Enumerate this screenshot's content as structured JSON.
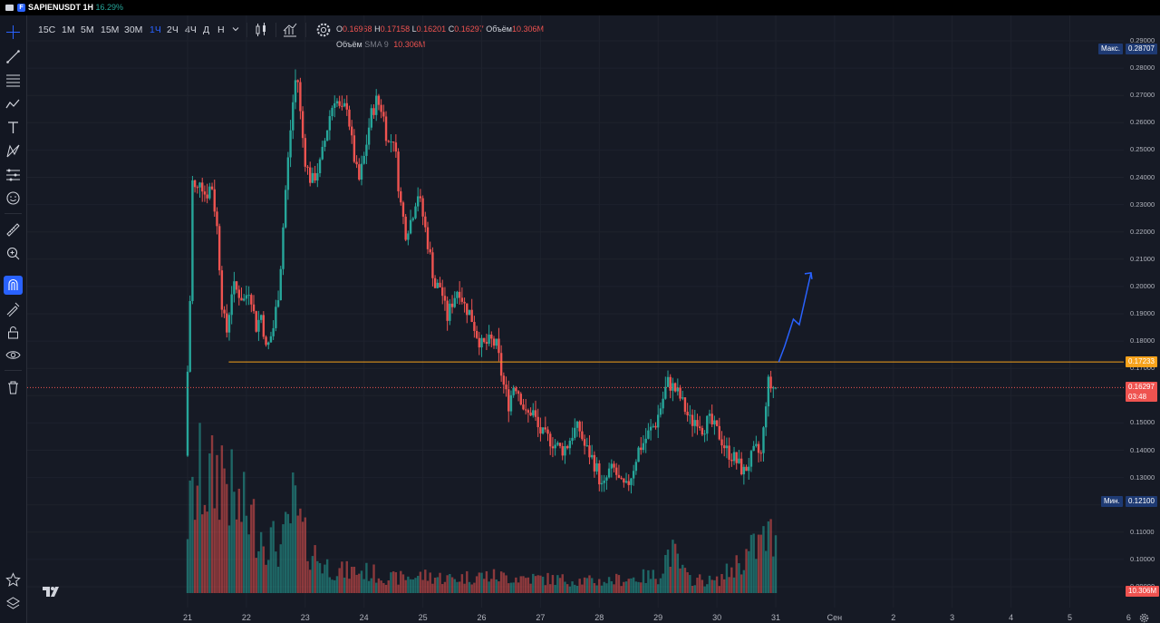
{
  "window": {
    "symbol": "SAPIENUSDT 1H",
    "change": "16.29%",
    "logo_letter": "F"
  },
  "toolbar": {
    "timeframes": [
      "15С",
      "1М",
      "5М",
      "15М",
      "30М",
      "1Ч",
      "2Ч",
      "4Ч",
      "Д",
      "Н"
    ],
    "selected_timeframe": "1Ч",
    "icons": [
      "dropdown-chevron-icon",
      "candles-icon",
      "indicators-icon",
      "settings-icon"
    ]
  },
  "left_tools": [
    "crosshair-icon",
    "trendline-icon",
    "fib-icon",
    "pattern-icon",
    "text-icon",
    "xabcd-icon",
    "forecast-icon",
    "emoji-icon",
    "ruler-icon",
    "zoom-icon",
    "magnet-icon",
    "lock-draw-icon",
    "lock-icon",
    "eye-icon",
    "trash-icon",
    "star-icon",
    "layers-icon"
  ],
  "legend": {
    "open_key": "О",
    "open": "0.16968",
    "high_key": "Н",
    "high": "0.17158",
    "low_key": "L",
    "low": "0.16201",
    "close_key": "С",
    "close": "0.16297",
    "vol_key": "Объём",
    "vol": "10.306M",
    "sma_name": "Объём",
    "sma_label": "SMA 9",
    "sma_value": "10.306M"
  },
  "price_axis": {
    "labels": [
      "0.29000",
      "0.28000",
      "0.27000",
      "0.26000",
      "0.25000",
      "0.24000",
      "0.23000",
      "0.22000",
      "0.21000",
      "0.20000",
      "0.19000",
      "0.18000",
      "0.17000",
      "0.16000",
      "0.15000",
      "0.14000",
      "0.13000",
      "0.12000",
      "0.11000",
      "0.10000",
      "0.09000"
    ],
    "max_label": "Макс.",
    "max_value": "0.28707",
    "min_label": "Мин.",
    "min_value": "0.12100",
    "level_value": "0.17233",
    "last_price": "0.16297",
    "countdown": "03:48",
    "volume_tag": "10.306M"
  },
  "time_axis": [
    "21",
    "22",
    "23",
    "24",
    "25",
    "26",
    "27",
    "28",
    "29",
    "30",
    "31",
    "Сен",
    "2",
    "3",
    "4",
    "5",
    "6"
  ],
  "colors": {
    "up": "#26a69a",
    "down": "#ef5350",
    "level": "#f7a21b",
    "arrow": "#2962ff",
    "background": "#161a25"
  },
  "chart_data": {
    "type": "candlestick",
    "ylim": [
      0.09,
      0.29
    ],
    "resistance_level": 0.17233,
    "last_close": 0.16297,
    "price_path": [
      [
        21.0,
        0.138
      ],
      [
        21.05,
        0.175
      ],
      [
        21.1,
        0.205
      ],
      [
        21.13,
        0.245
      ],
      [
        21.18,
        0.232
      ],
      [
        21.25,
        0.24
      ],
      [
        21.35,
        0.233
      ],
      [
        21.45,
        0.238
      ],
      [
        21.55,
        0.22
      ],
      [
        21.62,
        0.195
      ],
      [
        21.7,
        0.182
      ],
      [
        21.8,
        0.2
      ],
      [
        21.9,
        0.198
      ],
      [
        22.0,
        0.195
      ],
      [
        22.1,
        0.2
      ],
      [
        22.2,
        0.185
      ],
      [
        22.3,
        0.19
      ],
      [
        22.38,
        0.176
      ],
      [
        22.5,
        0.185
      ],
      [
        22.6,
        0.2
      ],
      [
        22.7,
        0.233
      ],
      [
        22.82,
        0.265
      ],
      [
        22.9,
        0.28
      ],
      [
        22.97,
        0.26
      ],
      [
        23.05,
        0.245
      ],
      [
        23.15,
        0.238
      ],
      [
        23.3,
        0.245
      ],
      [
        23.45,
        0.262
      ],
      [
        23.55,
        0.27
      ],
      [
        23.65,
        0.263
      ],
      [
        23.75,
        0.267
      ],
      [
        23.85,
        0.25
      ],
      [
        23.95,
        0.238
      ],
      [
        24.05,
        0.248
      ],
      [
        24.15,
        0.262
      ],
      [
        24.25,
        0.268
      ],
      [
        24.35,
        0.265
      ],
      [
        24.45,
        0.252
      ],
      [
        24.55,
        0.255
      ],
      [
        24.65,
        0.232
      ],
      [
        24.75,
        0.22
      ],
      [
        24.85,
        0.225
      ],
      [
        24.95,
        0.235
      ],
      [
        25.05,
        0.225
      ],
      [
        25.15,
        0.213
      ],
      [
        25.25,
        0.2
      ],
      [
        25.35,
        0.2
      ],
      [
        25.45,
        0.188
      ],
      [
        25.55,
        0.195
      ],
      [
        25.65,
        0.2
      ],
      [
        25.75,
        0.193
      ],
      [
        25.85,
        0.19
      ],
      [
        25.95,
        0.183
      ],
      [
        26.05,
        0.178
      ],
      [
        26.2,
        0.18
      ],
      [
        26.3,
        0.178
      ],
      [
        26.4,
        0.165
      ],
      [
        26.5,
        0.157
      ],
      [
        26.6,
        0.165
      ],
      [
        26.7,
        0.16
      ],
      [
        26.8,
        0.152
      ],
      [
        26.9,
        0.155
      ],
      [
        27.0,
        0.148
      ],
      [
        27.1,
        0.145
      ],
      [
        27.2,
        0.144
      ],
      [
        27.3,
        0.142
      ],
      [
        27.4,
        0.14
      ],
      [
        27.5,
        0.142
      ],
      [
        27.6,
        0.147
      ],
      [
        27.7,
        0.148
      ],
      [
        27.8,
        0.141
      ],
      [
        27.9,
        0.138
      ],
      [
        28.0,
        0.133
      ],
      [
        28.1,
        0.125
      ],
      [
        28.2,
        0.132
      ],
      [
        28.3,
        0.133
      ],
      [
        28.4,
        0.127
      ],
      [
        28.5,
        0.126
      ],
      [
        28.6,
        0.132
      ],
      [
        28.7,
        0.14
      ],
      [
        28.8,
        0.143
      ],
      [
        28.9,
        0.147
      ],
      [
        29.0,
        0.15
      ],
      [
        29.1,
        0.157
      ],
      [
        29.2,
        0.165
      ],
      [
        29.3,
        0.163
      ],
      [
        29.4,
        0.16
      ],
      [
        29.5,
        0.155
      ],
      [
        29.6,
        0.15
      ],
      [
        29.7,
        0.152
      ],
      [
        29.8,
        0.148
      ],
      [
        29.9,
        0.151
      ],
      [
        30.0,
        0.148
      ],
      [
        30.1,
        0.145
      ],
      [
        30.2,
        0.14
      ],
      [
        30.3,
        0.138
      ],
      [
        30.4,
        0.135
      ],
      [
        30.5,
        0.132
      ],
      [
        30.6,
        0.136
      ],
      [
        30.7,
        0.14
      ],
      [
        30.8,
        0.138
      ],
      [
        30.9,
        0.165
      ],
      [
        31.0,
        0.162
      ]
    ],
    "volume_path": [
      [
        21.0,
        0.5
      ],
      [
        21.2,
        0.8
      ],
      [
        21.4,
        0.75
      ],
      [
        21.6,
        0.9
      ],
      [
        21.8,
        0.6
      ],
      [
        22.0,
        0.55
      ],
      [
        22.3,
        0.4
      ],
      [
        22.6,
        0.3
      ],
      [
        22.8,
        0.6
      ],
      [
        23.0,
        0.35
      ],
      [
        23.3,
        0.2
      ],
      [
        23.6,
        0.15
      ],
      [
        24.0,
        0.15
      ],
      [
        24.5,
        0.1
      ],
      [
        25.0,
        0.12
      ],
      [
        25.5,
        0.1
      ],
      [
        26.0,
        0.12
      ],
      [
        27.0,
        0.1
      ],
      [
        28.0,
        0.08
      ],
      [
        29.0,
        0.12
      ],
      [
        29.2,
        0.3
      ],
      [
        29.5,
        0.1
      ],
      [
        30.0,
        0.08
      ],
      [
        30.9,
        0.4
      ],
      [
        31.0,
        0.3
      ]
    ],
    "projection_arrow": [
      [
        31.05,
        0.1723
      ],
      [
        31.15,
        0.178
      ],
      [
        31.3,
        0.188
      ],
      [
        31.4,
        0.186
      ],
      [
        31.6,
        0.205
      ]
    ]
  }
}
